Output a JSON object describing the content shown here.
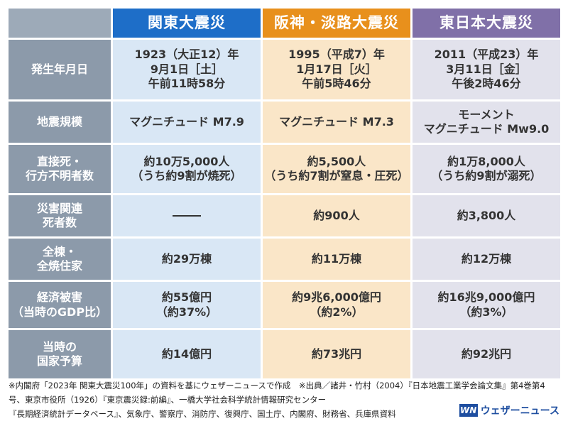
{
  "columns": [
    "関東大震災",
    "阪神・淡路大震災",
    "東日本大震災"
  ],
  "rows": [
    {
      "label": "発生年月日",
      "cells": [
        "1923（大正12）年\n9月1日［土］\n午前11時58分",
        "1995（平成7）年\n1月17日［火］\n午前5時46分",
        "2011（平成23）年\n3月11日［金］\n午後2時46分"
      ]
    },
    {
      "label": "地震規模",
      "cells": [
        "マグニチュード M7.9",
        "マグニチュード M7.3",
        "モーメント\nマグニチュード Mw9.0"
      ]
    },
    {
      "label": "直接死・\n行方不明者数",
      "cells": [
        "約10万5,000人\n（うち約9割が焼死）",
        "約5,500人\n（うち約7割が窒息・圧死）",
        "約1万8,000人\n（うち約9割が溺死）"
      ]
    },
    {
      "label": "災害関連\n死者数",
      "cells": [
        "",
        "約900人",
        "約3,800人"
      ]
    },
    {
      "label": "全棟・\n全焼住家",
      "cells": [
        "約29万棟",
        "約11万棟",
        "約12万棟"
      ]
    },
    {
      "label": "経済被害\n（当時のGDP比）",
      "cells": [
        "約55億円\n（約37%）",
        "約9兆6,000億円\n（約2%）",
        "約16兆9,000億円\n（約3%）"
      ]
    },
    {
      "label": "当時の\n国家予算",
      "cells": [
        "約14億円",
        "約73兆円",
        "約92兆円"
      ]
    }
  ],
  "footnote": "※内閣府「2023年 関東大震災100年」の資料を基にウェザーニュースで作成　※出典／諸井・竹村（2004）『日本地震工業学会論文集』第4巻第4号、東京市役所（1926）『東京震災録:前編』、一橋大学社会科学統計情報研究センター\n『長期経済統計データベース』、気象庁、警察庁、消防庁、復興庁、国土庁、内閣府、財務省、兵庫県資料",
  "logo": {
    "mark": "WN",
    "text": "ウェザーニュース"
  },
  "colors": {
    "kanto_header": "#1e6ec8",
    "hanshin_header": "#e8901c",
    "tohoku_header": "#8070a8",
    "row_header": "#8c9aaa"
  }
}
